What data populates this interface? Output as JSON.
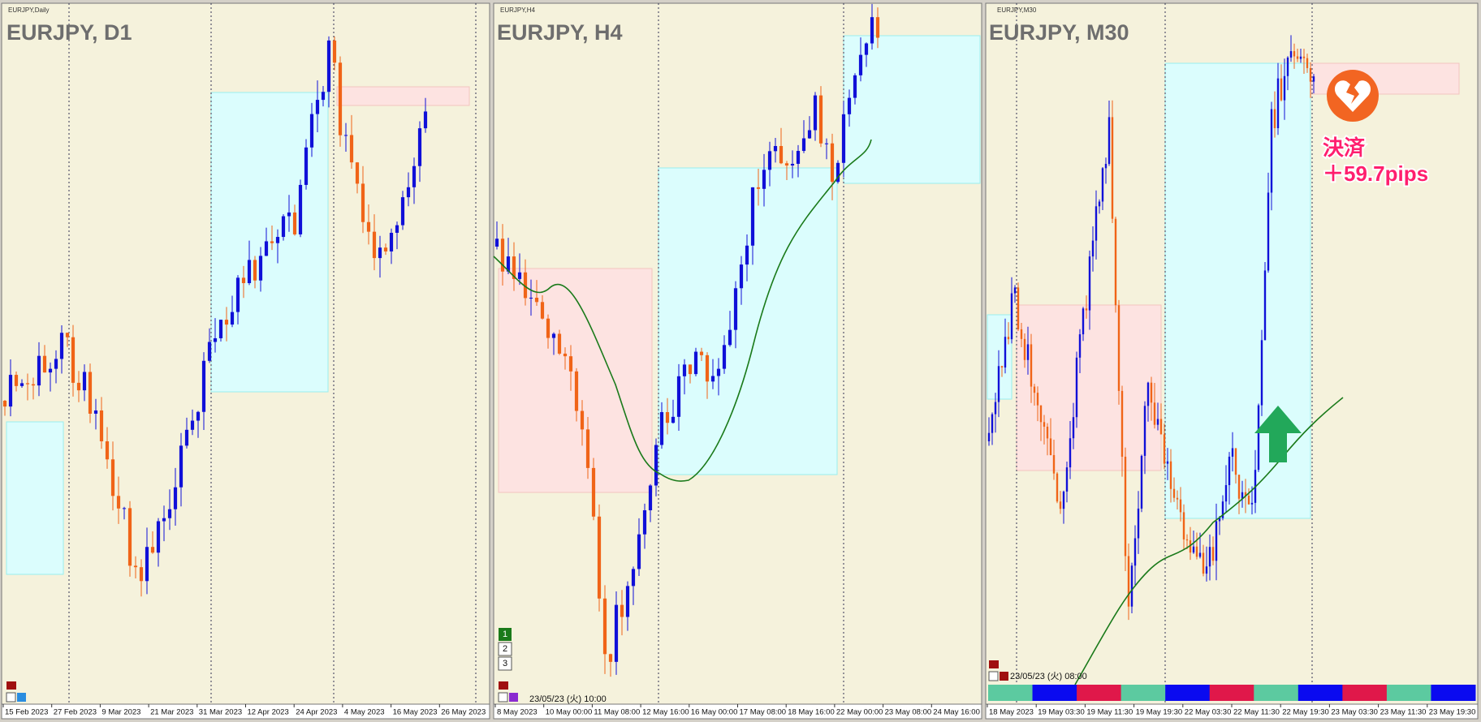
{
  "panels": [
    {
      "small_label": "EURJPY,Daily",
      "title": "EURJPY, D1",
      "x_labels": [
        "15 Feb 2023",
        "27 Feb 2023",
        "9 Mar 2023",
        "21 Mar 2023",
        "31 Mar 2023",
        "12 Apr 2023",
        "24 Apr 2023",
        "4 May 2023",
        "16 May 2023",
        "26 May 2023"
      ]
    },
    {
      "small_label": "EURJPY,H4",
      "title": "EURJPY, H4",
      "x_labels": [
        "8 May 2023",
        "10 May 00:00",
        "11 May 08:00",
        "12 May 16:00",
        "16 May 00:00",
        "17 May 08:00",
        "18 May 16:00",
        "22 May 00:00",
        "23 May 08:00",
        "24 May 16:00"
      ],
      "date_label": "23/05/23 (火) 10:00",
      "buttons": [
        "1",
        "2",
        "3"
      ]
    },
    {
      "small_label": "EURJPY,M30",
      "title": "EURJPY, M30",
      "x_labels": [
        "18 May 2023",
        "19 May 03:30",
        "19 May 11:30",
        "19 May 19:30",
        "22 May 03:30",
        "22 May 11:30",
        "22 May 19:30",
        "23 May 03:30",
        "23 May 11:30",
        "23 May 19:30"
      ],
      "date_label": "23/05/23 (火) 08:00",
      "annotation": [
        "決済",
        "＋59.7pips"
      ]
    }
  ]
}
